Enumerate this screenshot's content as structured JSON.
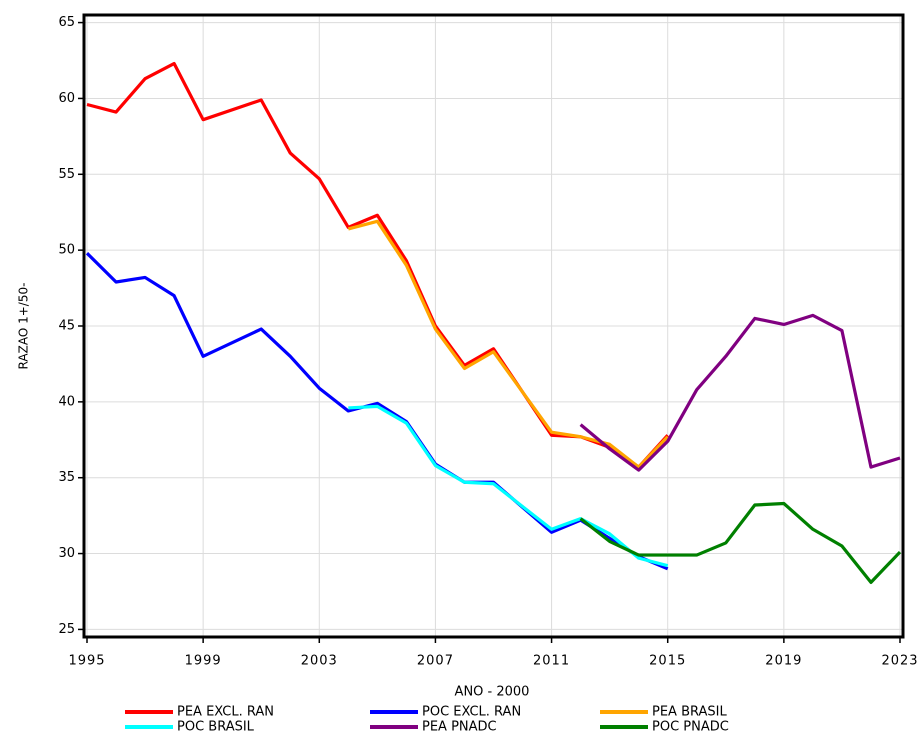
{
  "chart_data": {
    "type": "line",
    "x_label": "ANO - 2000",
    "y_label": "RAZAO 1+/50-",
    "x": [
      1995,
      1996,
      1997,
      1998,
      1999,
      2001,
      2002,
      2003,
      2004,
      2005,
      2006,
      2007,
      2008,
      2009,
      2011,
      2012,
      2013,
      2014,
      2015,
      2016,
      2017,
      2018,
      2019,
      2020,
      2021,
      2022,
      2023
    ],
    "xlim": [
      1995,
      2023
    ],
    "xticks": [
      1995,
      1999,
      2003,
      2007,
      2011,
      2015,
      2019,
      2023
    ],
    "ylim": [
      24.5,
      65.5
    ],
    "yticks": [
      25,
      30,
      35,
      40,
      45,
      50,
      55,
      60,
      65
    ],
    "grid": true,
    "legend": "bottom",
    "series": [
      {
        "name": "PEA EXCL. RAN",
        "color": "#ff0000",
        "values": [
          59.6,
          59.1,
          61.3,
          62.3,
          58.6,
          59.9,
          56.4,
          54.7,
          51.5,
          52.3,
          49.3,
          45.0,
          42.4,
          43.5,
          37.8,
          37.7,
          37.0,
          35.7,
          37.8,
          null,
          null,
          null,
          null,
          null,
          null,
          null,
          null
        ]
      },
      {
        "name": "POC EXCL. RAN",
        "color": "#0000ff",
        "values": [
          49.8,
          47.9,
          48.2,
          47.0,
          43.0,
          44.8,
          43.0,
          40.9,
          39.4,
          39.9,
          38.7,
          35.9,
          34.7,
          34.7,
          31.4,
          32.2,
          31.0,
          29.8,
          29.0,
          null,
          null,
          null,
          null,
          null,
          null,
          null,
          null
        ]
      },
      {
        "name": "PEA BRASIL",
        "color": "#ffa500",
        "values": [
          null,
          null,
          null,
          null,
          null,
          null,
          null,
          null,
          51.4,
          51.9,
          49.0,
          44.8,
          42.2,
          43.3,
          38.0,
          37.7,
          37.2,
          35.7,
          37.7,
          null,
          null,
          null,
          null,
          null,
          null,
          null,
          null
        ]
      },
      {
        "name": "POC BRASIL",
        "color": "#00ffff",
        "values": [
          null,
          null,
          null,
          null,
          null,
          null,
          null,
          null,
          39.6,
          39.7,
          38.6,
          35.8,
          34.7,
          34.6,
          31.6,
          32.3,
          31.3,
          29.7,
          29.2,
          null,
          null,
          null,
          null,
          null,
          null,
          null,
          null
        ]
      },
      {
        "name": "PEA PNADC",
        "color": "#800080",
        "values": [
          null,
          null,
          null,
          null,
          null,
          null,
          null,
          null,
          null,
          null,
          null,
          null,
          null,
          null,
          null,
          38.5,
          36.9,
          35.5,
          37.4,
          40.8,
          43.0,
          45.5,
          45.1,
          45.7,
          44.7,
          35.7,
          36.3
        ]
      },
      {
        "name": "POC PNADC",
        "color": "#008000",
        "values": [
          null,
          null,
          null,
          null,
          null,
          null,
          null,
          null,
          null,
          null,
          null,
          null,
          null,
          null,
          null,
          32.3,
          30.8,
          29.9,
          29.9,
          29.9,
          30.7,
          33.2,
          33.3,
          31.6,
          30.5,
          28.1,
          30.1
        ]
      }
    ]
  }
}
